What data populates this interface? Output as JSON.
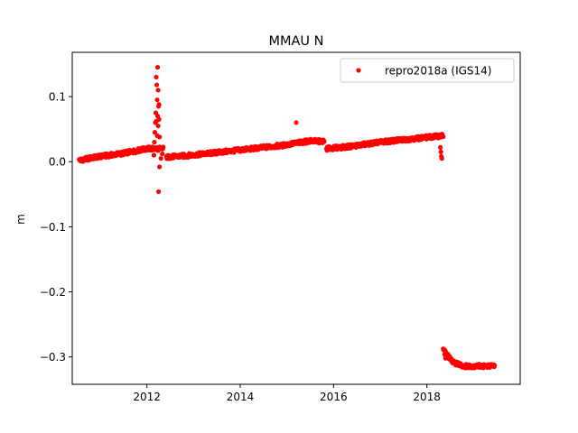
{
  "chart_data": {
    "type": "scatter",
    "title": "MMAU N",
    "xlabel": "",
    "ylabel": "m",
    "xlim": [
      2010.4,
      2020.0
    ],
    "ylim": [
      -0.342,
      0.168
    ],
    "x_ticks": [
      2012,
      2014,
      2016,
      2018
    ],
    "x_tick_labels": [
      "2012",
      "2014",
      "2016",
      "2018"
    ],
    "y_ticks": [
      0.1,
      0.0,
      -0.1,
      -0.2,
      -0.3
    ],
    "y_tick_labels": [
      "0.1",
      "0.0",
      "−0.1",
      "−0.2",
      "−0.3"
    ],
    "grid": false,
    "legend_position": "top-right",
    "series": [
      {
        "name": "repro2018a (IGS14)",
        "color": "#ff0000",
        "marker": "dot",
        "segments": [
          {
            "from": [
              2010.55,
              0.002
            ],
            "to": [
              2010.9,
              0.007
            ]
          },
          {
            "from": [
              2010.9,
              0.007
            ],
            "to": [
              2011.5,
              0.013
            ]
          },
          {
            "from": [
              2011.5,
              0.013
            ],
            "to": [
              2012.0,
              0.02
            ]
          },
          {
            "from": [
              2012.0,
              0.02
            ],
            "to": [
              2012.35,
              0.02
            ]
          },
          {
            "from": [
              2012.42,
              0.007
            ],
            "to": [
              2012.8,
              0.009
            ]
          },
          {
            "from": [
              2012.8,
              0.009
            ],
            "to": [
              2013.5,
              0.014
            ]
          },
          {
            "from": [
              2013.5,
              0.014
            ],
            "to": [
              2014.0,
              0.018
            ]
          },
          {
            "from": [
              2014.0,
              0.018
            ],
            "to": [
              2014.9,
              0.025
            ]
          },
          {
            "from": [
              2014.9,
              0.025
            ],
            "to": [
              2015.5,
              0.032
            ]
          },
          {
            "from": [
              2015.5,
              0.032
            ],
            "to": [
              2015.8,
              0.031
            ]
          },
          {
            "from": [
              2015.85,
              0.02
            ],
            "to": [
              2016.3,
              0.023
            ]
          },
          {
            "from": [
              2016.3,
              0.023
            ],
            "to": [
              2017.0,
              0.03
            ]
          },
          {
            "from": [
              2017.0,
              0.03
            ],
            "to": [
              2017.8,
              0.036
            ]
          },
          {
            "from": [
              2017.8,
              0.036
            ],
            "to": [
              2018.35,
              0.04
            ]
          },
          {
            "from": [
              2018.35,
              -0.288
            ],
            "to": [
              2018.55,
              -0.308
            ]
          },
          {
            "from": [
              2018.55,
              -0.308
            ],
            "to": [
              2018.8,
              -0.314
            ]
          },
          {
            "from": [
              2018.8,
              -0.314
            ],
            "to": [
              2019.45,
              -0.314
            ]
          }
        ],
        "points": [
          [
            2012.15,
            0.01
          ],
          [
            2012.16,
            0.03
          ],
          [
            2012.17,
            0.045
          ],
          [
            2012.18,
            0.06
          ],
          [
            2012.19,
            0.075
          ],
          [
            2012.2,
            0.13
          ],
          [
            2012.21,
            0.118
          ],
          [
            2012.22,
            0.095
          ],
          [
            2012.23,
            0.145
          ],
          [
            2012.24,
            0.11
          ],
          [
            2012.25,
            0.085
          ],
          [
            2012.26,
            0.065
          ],
          [
            2012.27,
            0.038
          ],
          [
            2012.23,
            0.07
          ],
          [
            2012.2,
            0.062
          ],
          [
            2012.22,
            0.04
          ],
          [
            2012.24,
            0.055
          ],
          [
            2012.26,
            0.088
          ],
          [
            2012.28,
            0.022
          ],
          [
            2012.27,
            -0.008
          ],
          [
            2012.25,
            -0.046
          ],
          [
            2012.3,
            0.005
          ],
          [
            2012.33,
            0.012
          ],
          [
            2015.2,
            0.06
          ],
          [
            2018.29,
            0.022
          ],
          [
            2018.3,
            0.015
          ],
          [
            2018.31,
            0.008
          ],
          [
            2018.32,
            0.005
          ],
          [
            2018.36,
            -0.288
          ],
          [
            2018.38,
            -0.296
          ],
          [
            2018.4,
            -0.302
          ],
          [
            2018.43,
            -0.3
          ]
        ]
      }
    ]
  }
}
